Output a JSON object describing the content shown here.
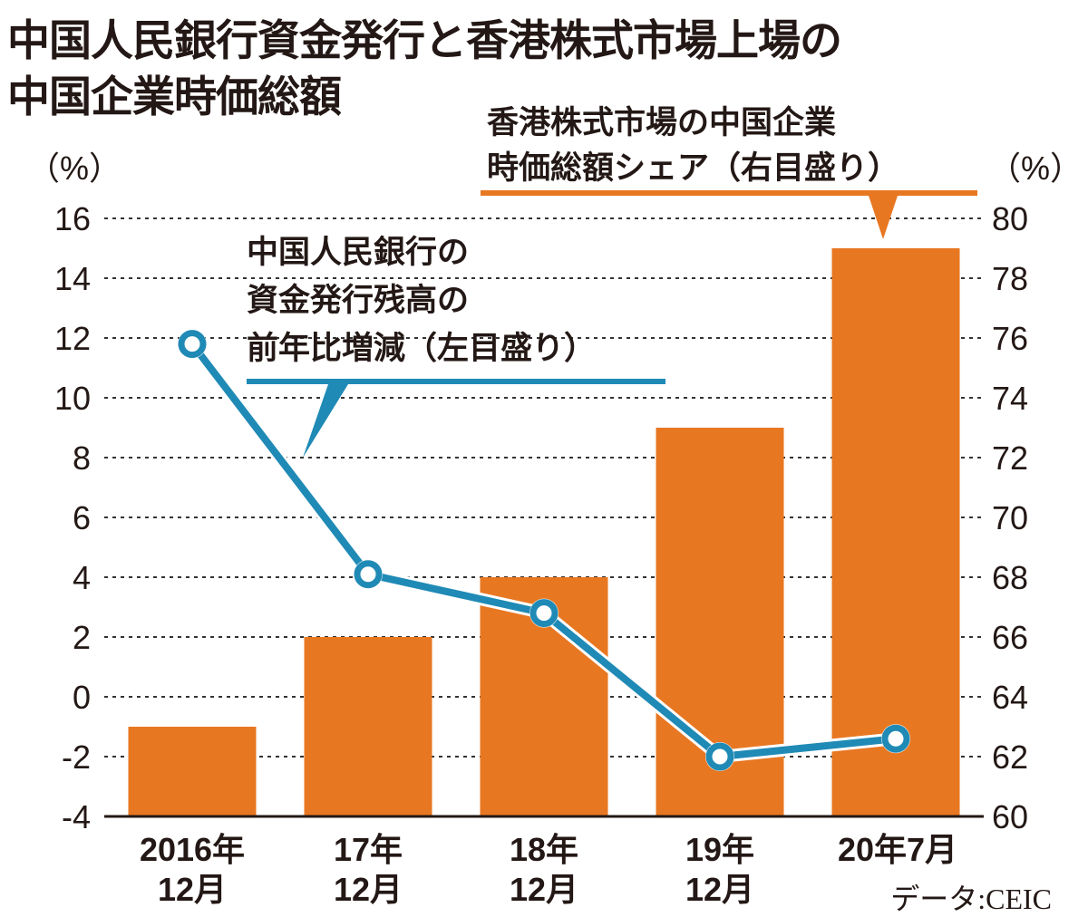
{
  "chart_data": {
    "type": "bar+line",
    "title_lines": [
      "中国人民銀行資金発行と香港株式市場上場の",
      "中国企業時価総額"
    ],
    "categories": [
      [
        "2016年",
        "12月"
      ],
      [
        "17年",
        "12月"
      ],
      [
        "18年",
        "12月"
      ],
      [
        "19年",
        "12月"
      ],
      [
        "20年7月",
        ""
      ]
    ],
    "left_axis": {
      "unit": "（%）",
      "ylim": [
        -4,
        16
      ],
      "ticks": [
        -4,
        -2,
        0,
        2,
        4,
        6,
        8,
        10,
        12,
        14,
        16
      ]
    },
    "right_axis": {
      "unit": "（%）",
      "ylim": [
        60,
        80
      ],
      "ticks": [
        60,
        62,
        64,
        66,
        68,
        70,
        72,
        74,
        76,
        78,
        80
      ]
    },
    "grid": true,
    "series": [
      {
        "name_lines": [
          "香港株式市場の中国企業",
          "時価総額シェア（右目盛り）"
        ],
        "type": "bar",
        "axis": "right",
        "color": "#E87722",
        "values": [
          63,
          66,
          68,
          73,
          79
        ]
      },
      {
        "name_lines": [
          "中国人民銀行の",
          "資金発行残高の",
          "前年比増減（左目盛り）"
        ],
        "type": "line",
        "axis": "left",
        "color": "#1F8AB5",
        "values": [
          11.8,
          4.1,
          2.8,
          -2.0,
          -1.4
        ]
      }
    ],
    "source": "データ:CEIC"
  }
}
